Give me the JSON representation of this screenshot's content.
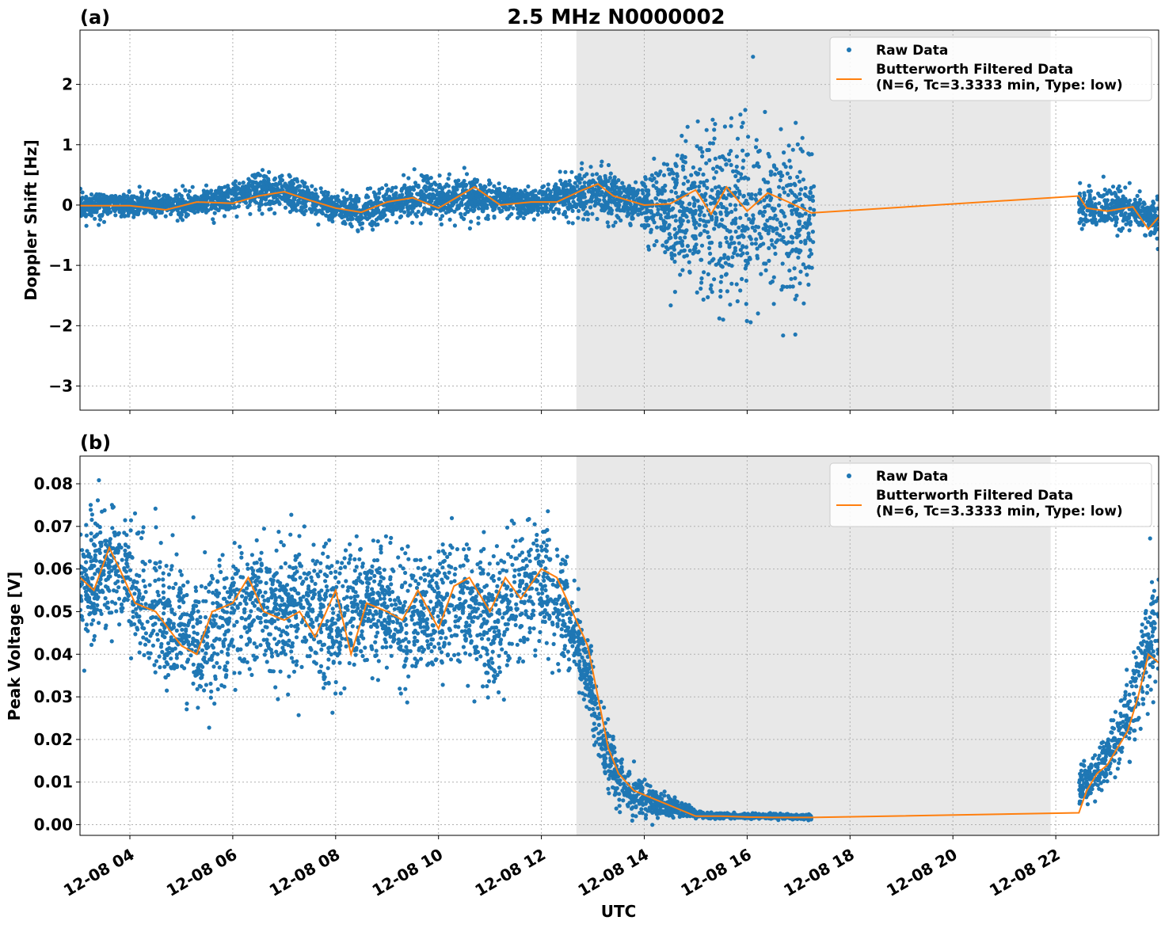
{
  "figure": {
    "title": "2.5 MHz N0000002",
    "xlabel": "UTC"
  },
  "colors": {
    "raw": "#1f77b4",
    "filtered": "#ff7f0e",
    "shade": "#e8e8e8",
    "grid": "#b0b0b0"
  },
  "chart_data": [
    {
      "type": "scatter",
      "panel_label": "(a)",
      "ylabel": "Doppler Shift [Hz]",
      "ylim": [
        -3.4,
        2.9
      ],
      "yticks": [
        2,
        1,
        0,
        -1,
        -2,
        -3
      ],
      "ytick_labels": [
        "2",
        "1",
        "0",
        "−1",
        "−2",
        "−3"
      ],
      "xlim_hours": [
        3.03,
        24.0
      ],
      "shaded_region_hours": [
        12.68,
        21.9
      ],
      "grid": true,
      "legend_position": "upper-right",
      "legend": {
        "raw": "Raw Data",
        "filtered_line1": "Butterworth Filtered Data",
        "filtered_line2": "(N=6, Tc=3.3333 min, Type: low)"
      },
      "series": [
        {
          "name": "Raw Data",
          "kind": "scatter",
          "segments": [
            {
              "x": [
                3.03,
                5.0,
                6.0,
                6.5,
                7.0,
                8.0,
                8.5,
                9.5,
                10.5,
                11.5,
                12.0,
                12.7,
                13.4,
                14.0
              ],
              "center": [
                0.0,
                0.0,
                0.1,
                0.25,
                0.2,
                -0.05,
                -0.1,
                0.1,
                0.15,
                0.05,
                0.05,
                0.2,
                0.15,
                0.0
              ],
              "spread": [
                0.18,
                0.18,
                0.2,
                0.3,
                0.25,
                0.2,
                0.25,
                0.25,
                0.3,
                0.2,
                0.2,
                0.35,
                0.35,
                0.3
              ]
            },
            {
              "x": [
                14.0,
                14.5,
                15.0,
                15.5,
                16.0,
                16.5,
                17.3
              ],
              "center": [
                0.0,
                -0.1,
                -0.2,
                -0.2,
                -0.2,
                -0.2,
                -0.2
              ],
              "spread": [
                0.5,
                0.9,
                1.2,
                1.3,
                1.3,
                1.2,
                1.1
              ]
            },
            {
              "x": [
                22.45,
                23.0,
                23.5,
                24.0
              ],
              "center": [
                0.0,
                -0.1,
                -0.05,
                -0.3
              ],
              "spread": [
                0.35,
                0.3,
                0.25,
                0.35
              ]
            }
          ]
        },
        {
          "name": "Butterworth Filtered Data",
          "kind": "line",
          "x": [
            3.03,
            4.0,
            4.7,
            5.3,
            6.0,
            6.5,
            7.0,
            7.5,
            8.0,
            8.5,
            9.0,
            9.5,
            10.0,
            10.7,
            11.2,
            11.8,
            12.3,
            12.8,
            13.1,
            13.4,
            14.0,
            14.5,
            15.0,
            15.3,
            15.6,
            16.0,
            16.4,
            16.8,
            17.25,
            22.45,
            22.6,
            23.0,
            23.5,
            23.8,
            24.0
          ],
          "y": [
            -0.01,
            -0.01,
            -0.08,
            0.05,
            0.03,
            0.15,
            0.22,
            0.08,
            -0.05,
            -0.12,
            0.05,
            0.12,
            -0.05,
            0.3,
            0.0,
            0.05,
            0.05,
            0.25,
            0.35,
            0.15,
            0.0,
            0.02,
            0.25,
            -0.15,
            0.3,
            -0.1,
            0.2,
            0.05,
            -0.13,
            0.15,
            -0.05,
            -0.1,
            -0.03,
            -0.4,
            -0.2
          ]
        }
      ]
    },
    {
      "type": "scatter",
      "panel_label": "(b)",
      "ylabel": "Peak Voltage [V]",
      "ylim": [
        -0.0025,
        0.0865
      ],
      "yticks": [
        0.08,
        0.07,
        0.06,
        0.05,
        0.04,
        0.03,
        0.02,
        0.01,
        0.0
      ],
      "ytick_labels": [
        "0.08",
        "0.07",
        "0.06",
        "0.05",
        "0.04",
        "0.03",
        "0.02",
        "0.01",
        "0.00"
      ],
      "xlim_hours": [
        3.03,
        24.0
      ],
      "shaded_region_hours": [
        12.68,
        21.9
      ],
      "grid": true,
      "legend_position": "upper-right",
      "legend": {
        "raw": "Raw Data",
        "filtered_line1": "Butterworth Filtered Data",
        "filtered_line2": "(N=6, Tc=3.3333 min, Type: low)"
      },
      "x_tick_labels": [
        "12-08 04",
        "12-08 06",
        "12-08 08",
        "12-08 10",
        "12-08 12",
        "12-08 14",
        "12-08 16",
        "12-08 18",
        "12-08 20",
        "12-08 22"
      ],
      "x_tick_hours": [
        4,
        6,
        8,
        10,
        12,
        14,
        16,
        18,
        20,
        22
      ],
      "series": [
        {
          "name": "Raw Data",
          "kind": "scatter",
          "segments": [
            {
              "x": [
                3.03,
                3.7,
                4.3,
                5.0,
                5.5,
                6.0,
                6.5,
                7.0,
                7.5,
                8.0,
                8.5,
                9.0,
                9.5,
                10.0,
                10.5,
                11.0,
                11.5,
                12.0,
                12.5,
                12.9,
                13.2,
                13.5,
                14.0,
                14.5,
                15.0
              ],
              "center": [
                0.055,
                0.062,
                0.052,
                0.045,
                0.044,
                0.05,
                0.052,
                0.05,
                0.05,
                0.046,
                0.052,
                0.05,
                0.048,
                0.05,
                0.052,
                0.048,
                0.052,
                0.058,
                0.05,
                0.035,
                0.02,
                0.01,
                0.006,
                0.004,
                0.003
              ],
              "spread": [
                0.014,
                0.013,
                0.013,
                0.014,
                0.014,
                0.014,
                0.013,
                0.013,
                0.013,
                0.014,
                0.013,
                0.013,
                0.013,
                0.013,
                0.014,
                0.014,
                0.014,
                0.013,
                0.01,
                0.008,
                0.007,
                0.006,
                0.004,
                0.002,
                0.001
              ]
            },
            {
              "x": [
                15.0,
                16.0,
                17.25
              ],
              "center": [
                0.0022,
                0.002,
                0.0018
              ],
              "spread": [
                0.0006,
                0.0005,
                0.0005
              ]
            },
            {
              "x": [
                22.45,
                22.8,
                23.2,
                23.5,
                23.8,
                24.0
              ],
              "center": [
                0.008,
                0.012,
                0.02,
                0.03,
                0.04,
                0.045
              ],
              "spread": [
                0.004,
                0.005,
                0.007,
                0.009,
                0.011,
                0.012
              ]
            }
          ]
        },
        {
          "name": "Butterworth Filtered Data",
          "kind": "line",
          "x": [
            3.03,
            3.3,
            3.6,
            3.8,
            4.1,
            4.5,
            5.0,
            5.3,
            5.6,
            6.0,
            6.3,
            6.6,
            7.0,
            7.3,
            7.6,
            8.0,
            8.3,
            8.6,
            9.0,
            9.3,
            9.6,
            10.0,
            10.3,
            10.6,
            11.0,
            11.3,
            11.6,
            12.0,
            12.3,
            12.6,
            12.9,
            13.1,
            13.3,
            13.5,
            13.8,
            14.2,
            14.6,
            15.0,
            15.5,
            16.0,
            16.5,
            17.25,
            22.45,
            22.6,
            22.8,
            23.0,
            23.2,
            23.4,
            23.6,
            23.8,
            24.0
          ],
          "y": [
            0.058,
            0.055,
            0.065,
            0.06,
            0.052,
            0.05,
            0.042,
            0.04,
            0.05,
            0.052,
            0.058,
            0.05,
            0.048,
            0.05,
            0.044,
            0.055,
            0.04,
            0.052,
            0.05,
            0.048,
            0.055,
            0.046,
            0.056,
            0.058,
            0.05,
            0.058,
            0.053,
            0.06,
            0.058,
            0.05,
            0.042,
            0.03,
            0.018,
            0.012,
            0.008,
            0.006,
            0.004,
            0.002,
            0.002,
            0.0018,
            0.0017,
            0.0017,
            0.0028,
            0.008,
            0.012,
            0.014,
            0.018,
            0.022,
            0.03,
            0.04,
            0.038
          ]
        }
      ]
    }
  ]
}
